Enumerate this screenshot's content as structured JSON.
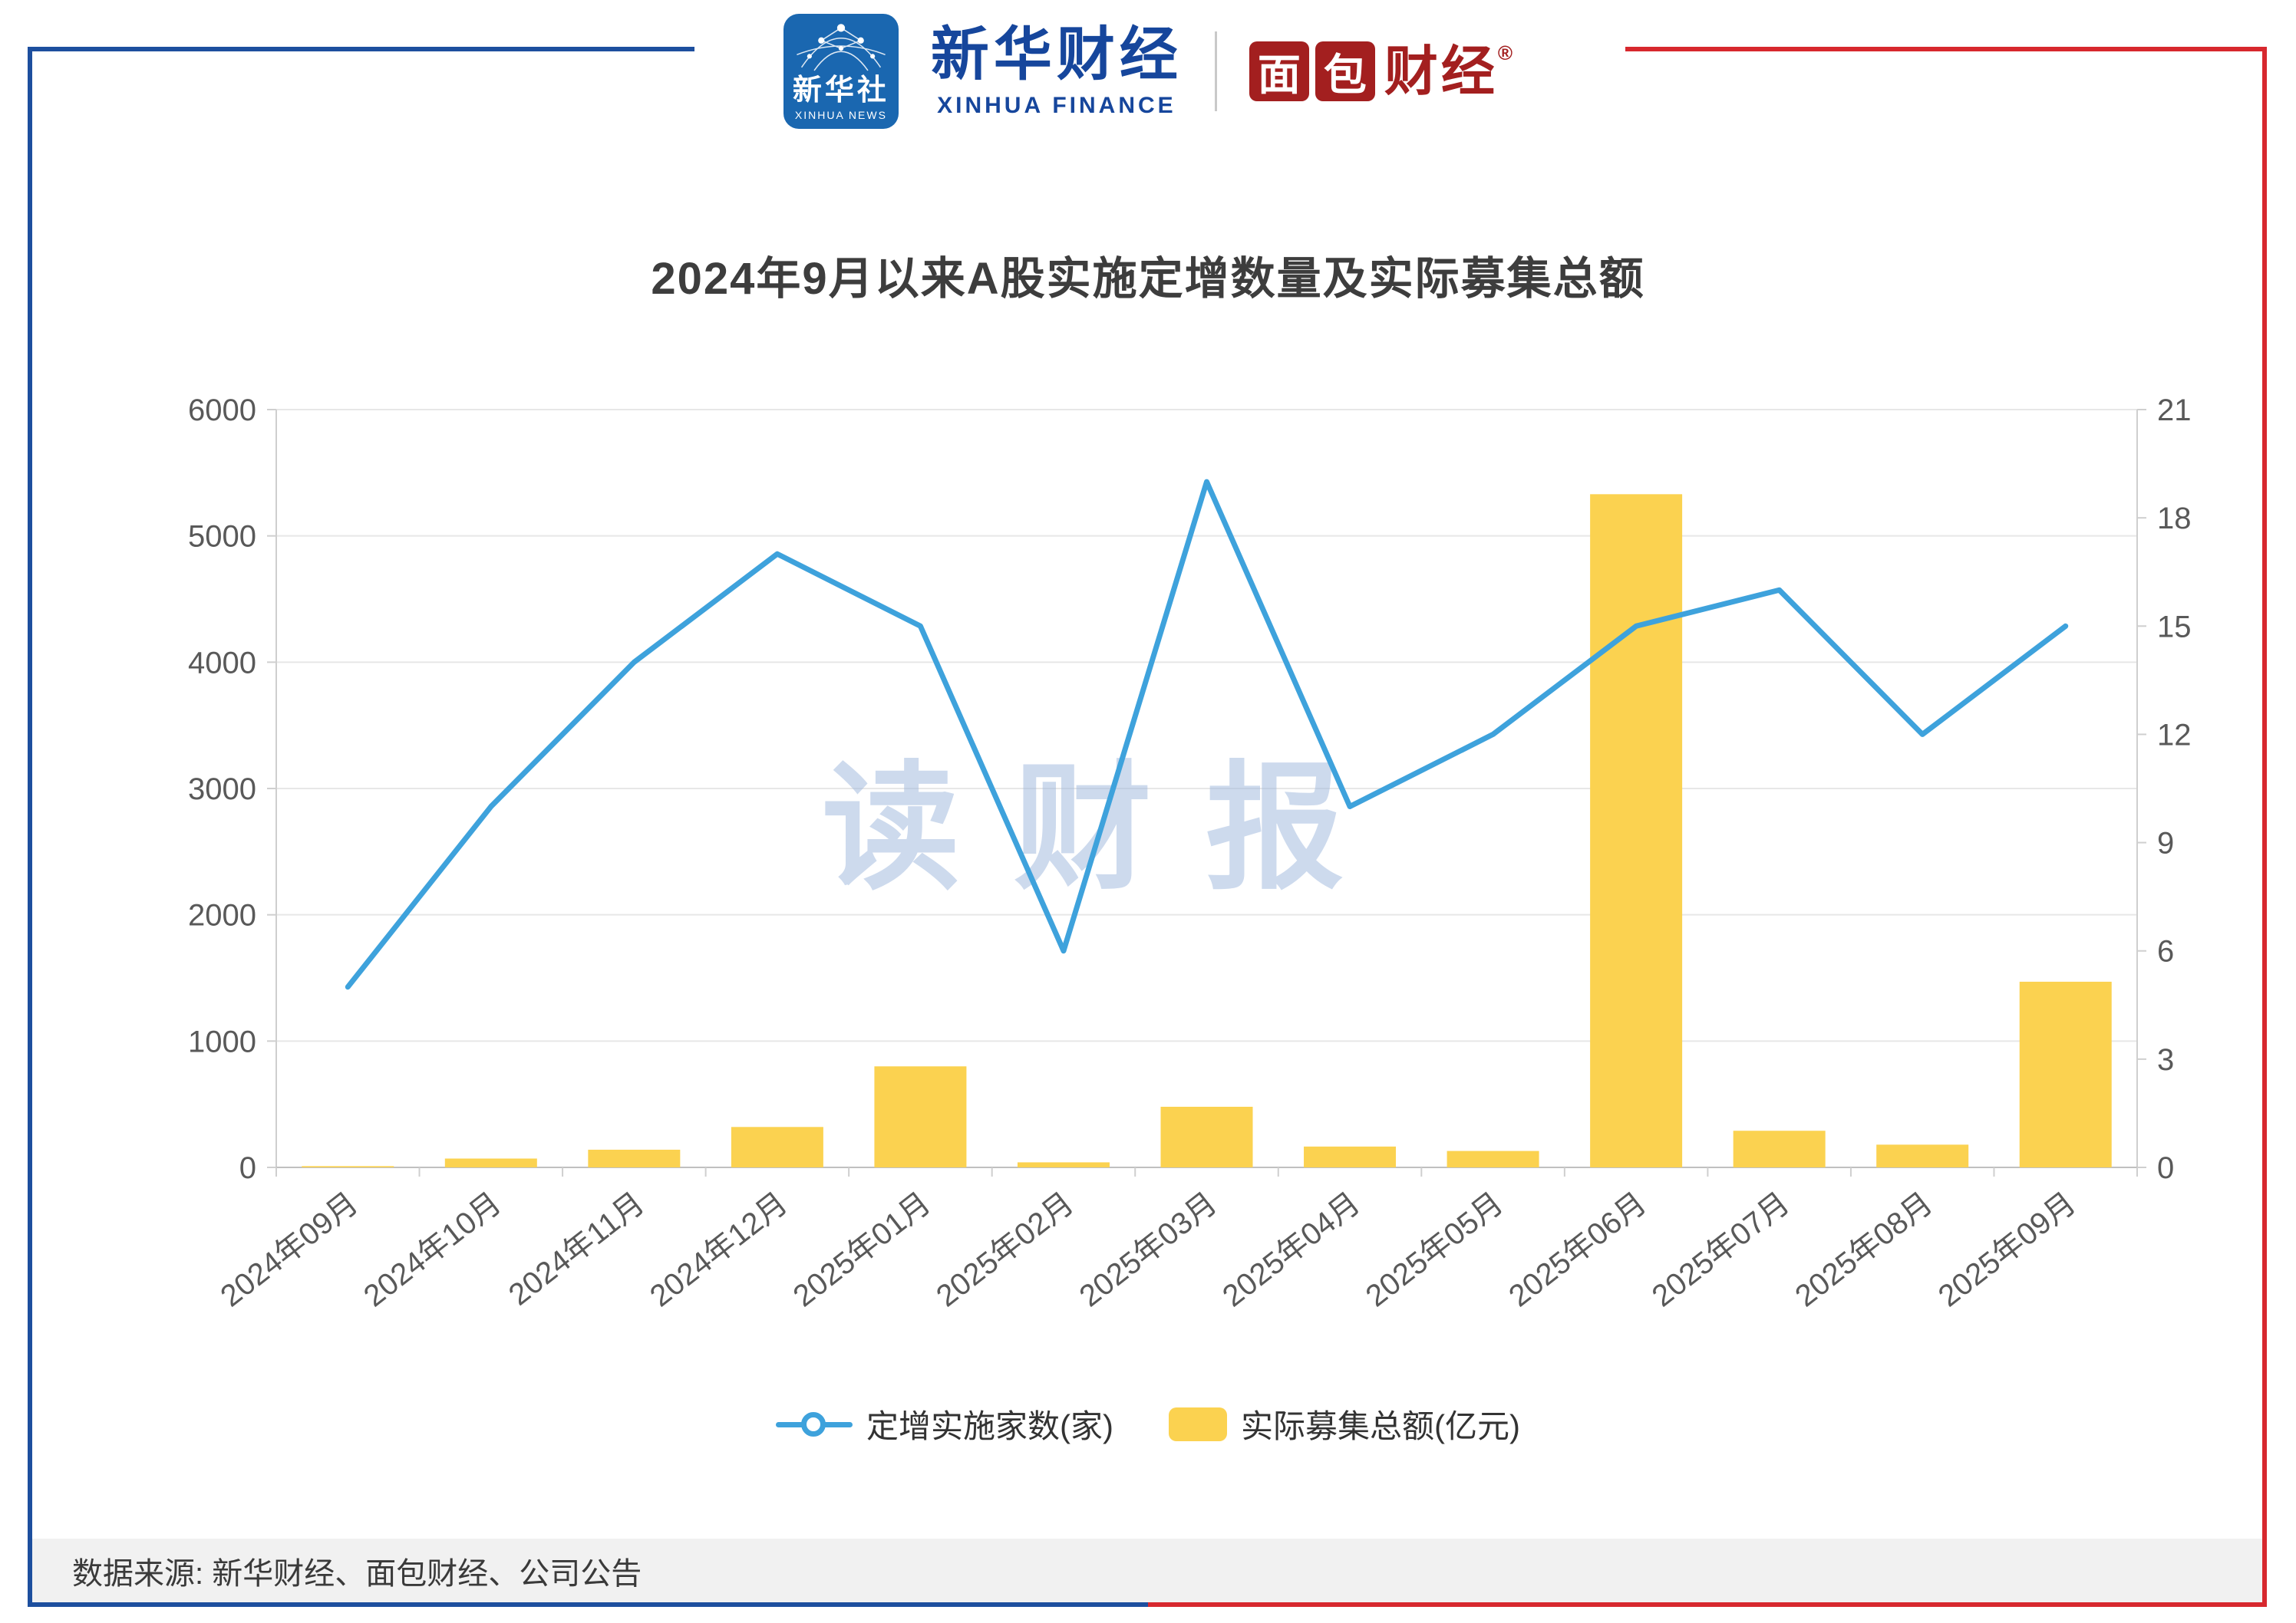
{
  "header": {
    "xinhua_logo": {
      "line1": "新华社",
      "line2": "XINHUA NEWS"
    },
    "xinhua_finance": {
      "cn": "新华财经",
      "en": "XINHUA FINANCE"
    },
    "mianbao": {
      "block1": "面",
      "block2": "包",
      "rest": "财经",
      "reg": "®"
    }
  },
  "title": "2024年9月以来A股实施定增数量及实际募集总额",
  "watermark": "读财报",
  "legend": [
    {
      "type": "line",
      "label": "定增实施家数(家)",
      "color": "#3ea2dc"
    },
    {
      "type": "bar",
      "label": "实际募集总额(亿元)",
      "color": "#fbd250"
    }
  ],
  "footer": "数据来源: 新华财经、面包财经、公司公告",
  "colors": {
    "line": "#3ea2dc",
    "bar": "#fbd250",
    "frame_blue": "#1d4f9e",
    "frame_red": "#d7282e",
    "logo_blue": "#1a67b0",
    "logo_red": "#a31f1f",
    "title_text": "#3d3d3d",
    "watermark": "#9cb6dd",
    "axis_text": "#595959"
  },
  "chart_data": {
    "type": "combo",
    "categories": [
      "2024年09月",
      "2024年10月",
      "2024年11月",
      "2024年12月",
      "2025年01月",
      "2025年02月",
      "2025年03月",
      "2025年04月",
      "2025年05月",
      "2025年06月",
      "2025年07月",
      "2025年08月",
      "2025年09月"
    ],
    "series": [
      {
        "name": "定增实施家数(家)",
        "type": "line",
        "axis": "right",
        "color": "#3ea2dc",
        "values": [
          5,
          10,
          14,
          17,
          15,
          6,
          19,
          10,
          12,
          15,
          16,
          12,
          15
        ]
      },
      {
        "name": "实际募集总额(亿元)",
        "type": "bar",
        "axis": "left",
        "color": "#fbd250",
        "values": [
          10,
          70,
          140,
          320,
          800,
          40,
          480,
          165,
          130,
          5330,
          290,
          180,
          1470
        ]
      }
    ],
    "left_axis": {
      "min": 0,
      "max": 6000,
      "ticks": [
        0,
        1000,
        2000,
        3000,
        4000,
        5000,
        6000
      ]
    },
    "right_axis": {
      "min": 0,
      "max": 21,
      "ticks": [
        0,
        3,
        6,
        9,
        12,
        15,
        18,
        21
      ]
    },
    "grid": true,
    "legend_position": "bottom",
    "title": "2024年9月以来A股实施定增数量及实际募集总额"
  }
}
